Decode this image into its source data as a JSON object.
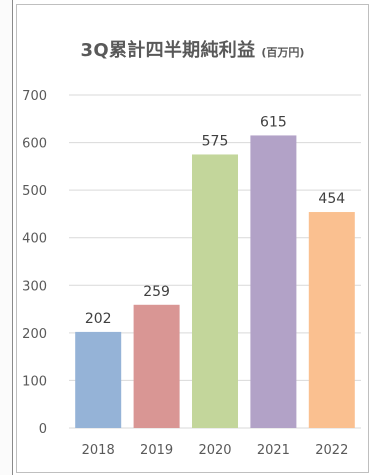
{
  "chart_data": {
    "type": "bar",
    "title": "3Q累計四半期純利益",
    "unit": "(百万円)",
    "categories": [
      "2018",
      "2019",
      "2020",
      "2021",
      "2022"
    ],
    "values": [
      202,
      259,
      575,
      615,
      454
    ],
    "colors": [
      "#95b3d7",
      "#d99694",
      "#c3d69b",
      "#b2a2c7",
      "#fac090"
    ],
    "ylim": [
      0,
      700
    ],
    "yticks": [
      "0",
      "100",
      "200",
      "300",
      "400",
      "500",
      "600",
      "700"
    ],
    "grid": true,
    "legend": "none"
  }
}
